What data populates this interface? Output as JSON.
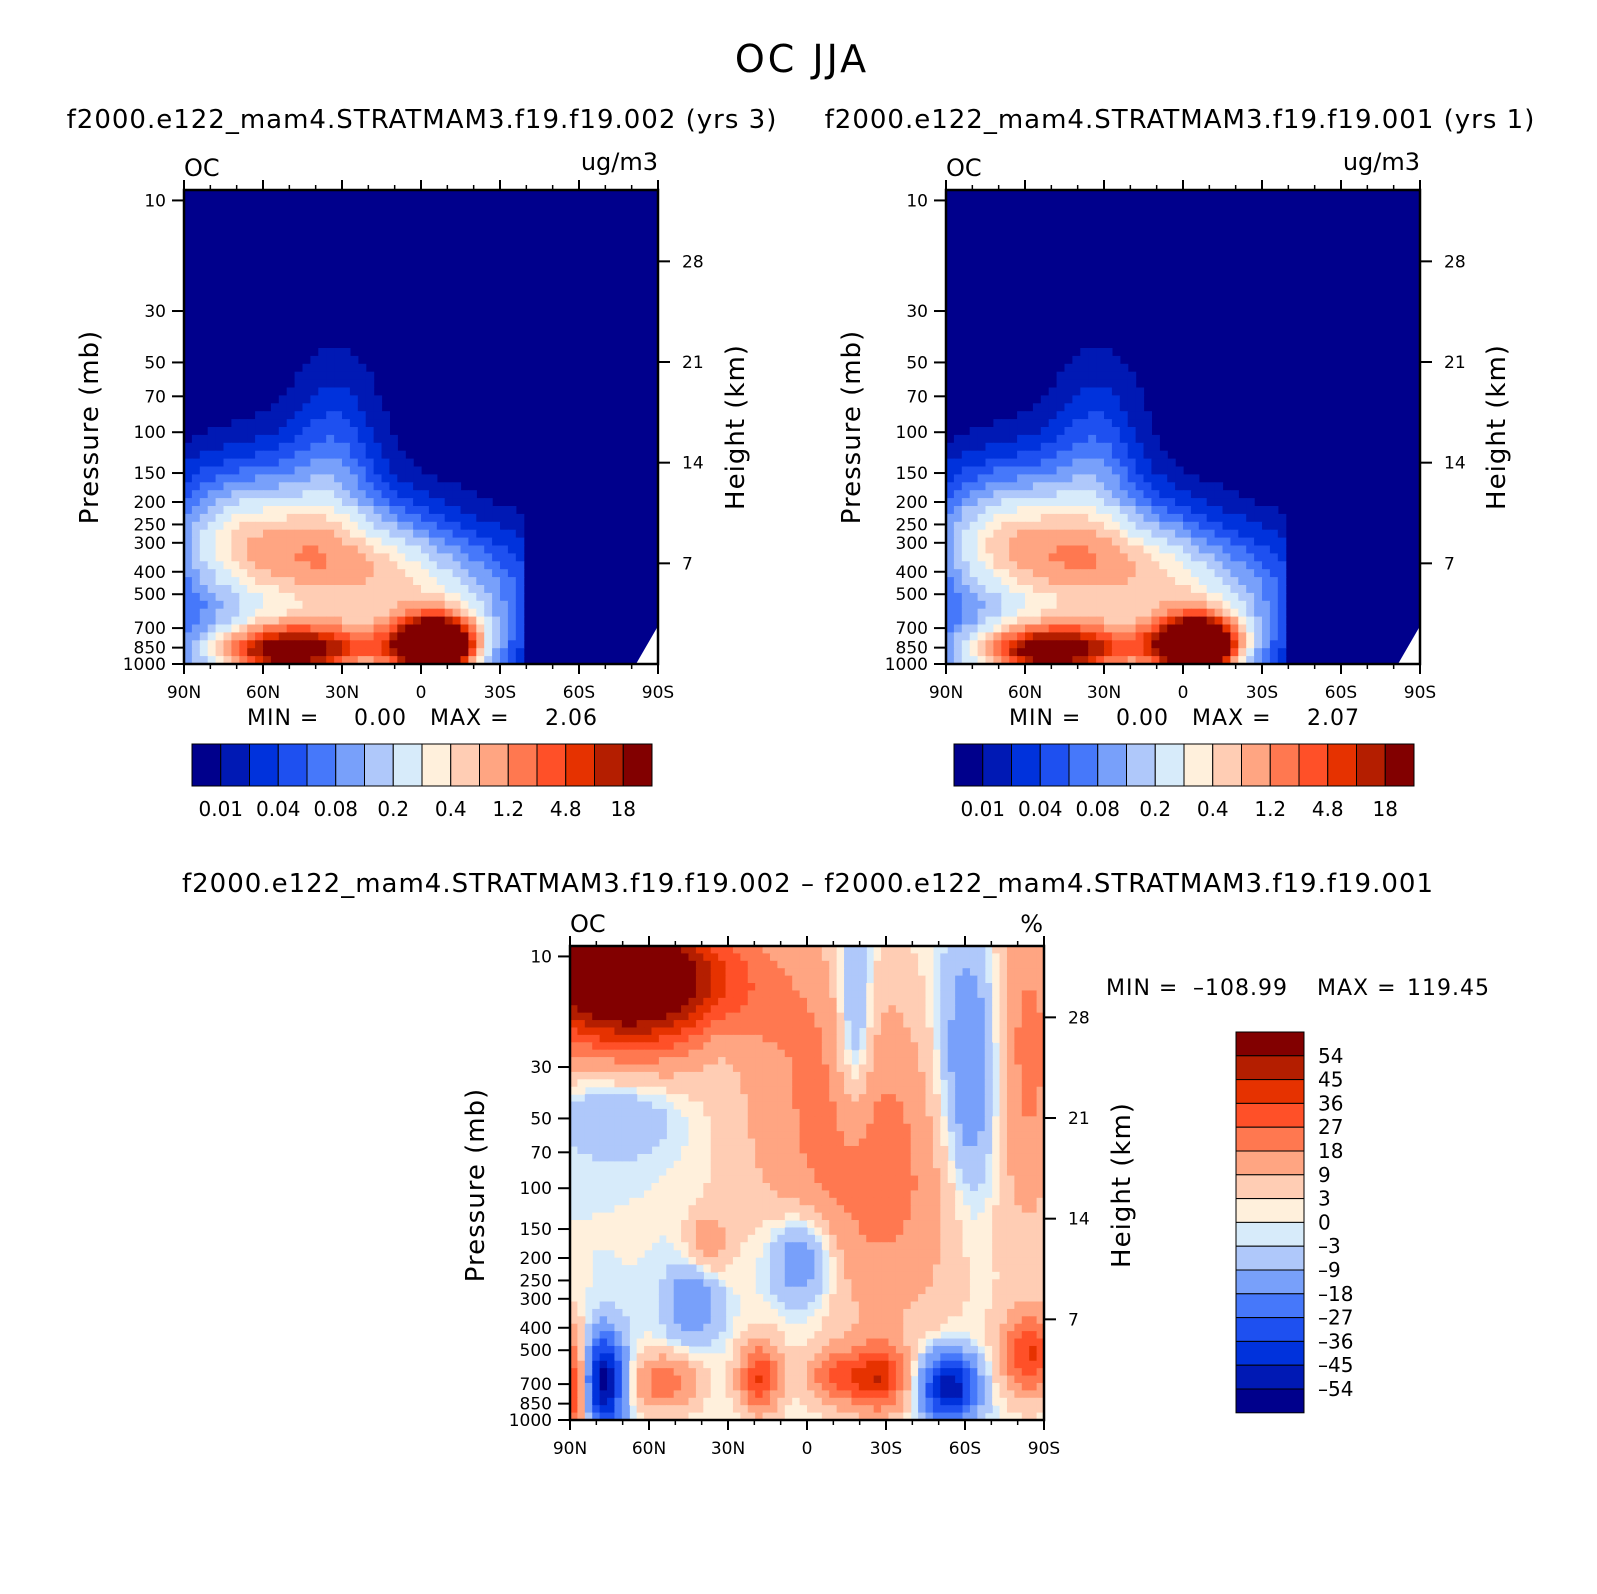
{
  "figure": {
    "title": "OC JJA"
  },
  "colors": {
    "abs_palette": [
      "#00008c",
      "#0019b4",
      "#0032dc",
      "#1e50f0",
      "#4678fa",
      "#78a0fa",
      "#afc8fa",
      "#d7ebfa",
      "#fff0dc",
      "#ffcdb4",
      "#ffa582",
      "#ff7850",
      "#ff5028",
      "#e63200",
      "#b41e00",
      "#820000"
    ],
    "diff_palette": [
      "#820000",
      "#b41e00",
      "#e63200",
      "#ff5028",
      "#ff7850",
      "#ffa582",
      "#ffcdb4",
      "#fff0dc",
      "#d7ebfa",
      "#afc8fa",
      "#78a0fa",
      "#4678fa",
      "#1e50f0",
      "#0032dc",
      "#0019b4",
      "#00008c"
    ]
  },
  "chart_data": [
    {
      "type": "heatmap",
      "id": "left",
      "title": "f2000.e122_mam4.STRATMAM3.f19.f19.002 (yrs 3)",
      "variable": "OC",
      "units": "ug/m3",
      "xlabel": "",
      "ylabel": "Pressure (mb)",
      "ylabel_right": "Height (km)",
      "x_ticks": [
        "90N",
        "60N",
        "30N",
        "0",
        "30S",
        "60S",
        "90S"
      ],
      "y_ticks": [
        "10",
        "30",
        "50",
        "70",
        "100",
        "150",
        "200",
        "250",
        "300",
        "400",
        "500",
        "700",
        "850",
        "1000"
      ],
      "y_ticks_right": [
        "28",
        "21",
        "14",
        "7"
      ],
      "stats": {
        "min_label": "MIN =",
        "min": "0.00",
        "max_label": "MAX =",
        "max": "2.06"
      },
      "colorbar": {
        "labels": [
          "0.01",
          "0.04",
          "0.08",
          "0.2",
          "0.4",
          "1.2",
          "4.8",
          "18"
        ]
      },
      "surface_max": 2.06
    },
    {
      "type": "heatmap",
      "id": "right",
      "title": "f2000.e122_mam4.STRATMAM3.f19.f19.001 (yrs 1)",
      "variable": "OC",
      "units": "ug/m3",
      "xlabel": "",
      "ylabel": "Pressure (mb)",
      "ylabel_right": "Height (km)",
      "x_ticks": [
        "90N",
        "60N",
        "30N",
        "0",
        "30S",
        "60S",
        "90S"
      ],
      "y_ticks": [
        "10",
        "30",
        "50",
        "70",
        "100",
        "150",
        "200",
        "250",
        "300",
        "400",
        "500",
        "700",
        "850",
        "1000"
      ],
      "y_ticks_right": [
        "28",
        "21",
        "14",
        "7"
      ],
      "stats": {
        "min_label": "MIN =",
        "min": "0.00",
        "max_label": "MAX =",
        "max": "2.07"
      },
      "colorbar": {
        "labels": [
          "0.01",
          "0.04",
          "0.08",
          "0.2",
          "0.4",
          "1.2",
          "4.8",
          "18"
        ]
      },
      "surface_max": 2.07
    },
    {
      "type": "heatmap",
      "id": "diff",
      "title": "f2000.e122_mam4.STRATMAM3.f19.f19.002 – f2000.e122_mam4.STRATMAM3.f19.f19.001",
      "variable": "OC",
      "units": "%",
      "xlabel": "",
      "ylabel": "Pressure (mb)",
      "ylabel_right": "Height (km)",
      "x_ticks": [
        "90N",
        "60N",
        "30N",
        "0",
        "30S",
        "60S",
        "90S"
      ],
      "y_ticks": [
        "10",
        "30",
        "50",
        "70",
        "100",
        "150",
        "200",
        "250",
        "300",
        "400",
        "500",
        "700",
        "850",
        "1000"
      ],
      "y_ticks_right": [
        "28",
        "21",
        "14",
        "7"
      ],
      "stats": {
        "min_label": "MIN =",
        "min": "–108.99",
        "max_label": "MAX =",
        "max": "119.45"
      },
      "colorbar": {
        "labels": [
          "54",
          "45",
          "36",
          "27",
          "18",
          "9",
          "3",
          "0",
          "–3",
          "–9",
          "–18",
          "–27",
          "–36",
          "–45",
          "–54"
        ]
      }
    }
  ]
}
